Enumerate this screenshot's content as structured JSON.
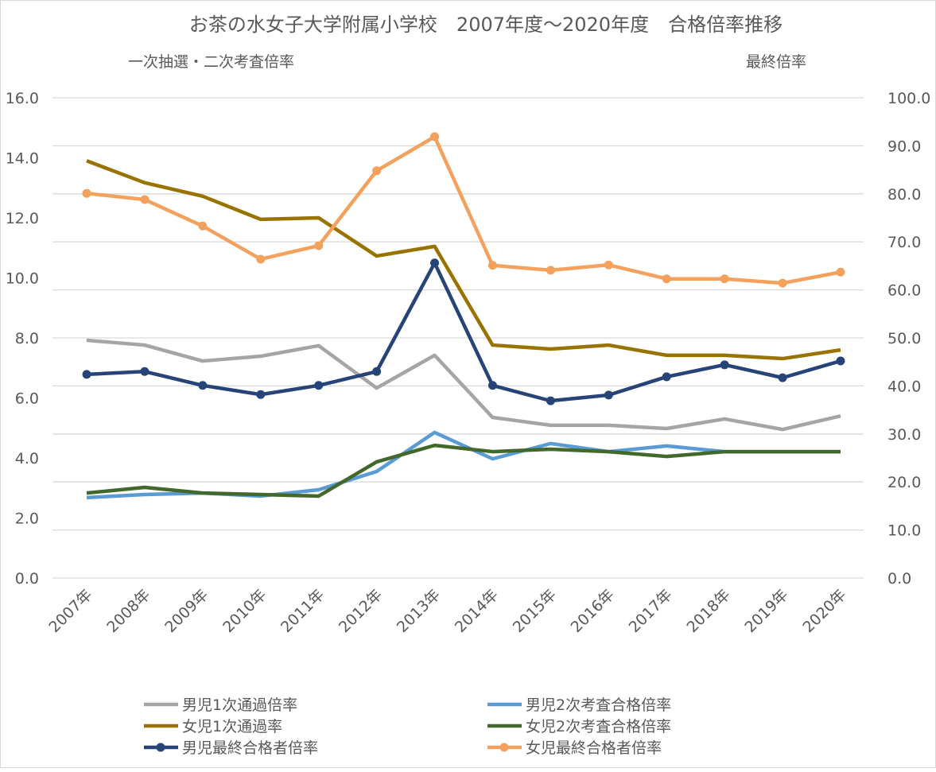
{
  "chart_data": {
    "type": "line",
    "title": "お茶の水女子大学附属小学校　2007年度～2020年度　合格倍率推移",
    "left_axis_label": "一次抽選・二次考査倍率",
    "right_axis_label": "最終倍率",
    "categories": [
      "2007年",
      "2008年",
      "2009年",
      "2010年",
      "2011年",
      "2012年",
      "2013年",
      "2014年",
      "2015年",
      "2016年",
      "2017年",
      "2018年",
      "2019年",
      "2020年"
    ],
    "y_left": {
      "min": 0,
      "max": 16,
      "step": 2,
      "ticks": [
        "0.0",
        "2.0",
        "4.0",
        "6.0",
        "8.0",
        "10.0",
        "12.0",
        "14.0",
        "16.0"
      ]
    },
    "y_right": {
      "min": 0,
      "max": 100,
      "step": 10,
      "ticks": [
        "0.0",
        "10.0",
        "20.0",
        "30.0",
        "40.0",
        "50.0",
        "60.0",
        "70.0",
        "80.0",
        "90.0",
        "100.0"
      ]
    },
    "grid": true,
    "legend_position": "bottom",
    "series": [
      {
        "name": "男児1次通過倍率",
        "axis": "left",
        "color": "#a5a5a5",
        "markers": false,
        "values": [
          7.92,
          7.76,
          7.23,
          7.39,
          7.74,
          6.33,
          7.42,
          5.35,
          5.09,
          5.09,
          4.98,
          5.3,
          4.95,
          5.4
        ]
      },
      {
        "name": "男児2次考査合格倍率",
        "axis": "left",
        "color": "#5b9bd5",
        "markers": false,
        "values": [
          2.68,
          2.78,
          2.83,
          2.73,
          2.94,
          3.55,
          4.85,
          3.97,
          4.48,
          4.21,
          4.4,
          4.21,
          4.21,
          4.21
        ]
      },
      {
        "name": "女児1次通過率",
        "axis": "left",
        "color": "#997300",
        "markers": false,
        "values": [
          13.9,
          13.17,
          12.72,
          11.95,
          12.0,
          10.73,
          11.05,
          7.76,
          7.63,
          7.76,
          7.42,
          7.42,
          7.31,
          7.6
        ]
      },
      {
        "name": "女児2次考査合格倍率",
        "axis": "left",
        "color": "#43682b",
        "markers": false,
        "values": [
          2.83,
          3.02,
          2.83,
          2.78,
          2.73,
          3.87,
          4.42,
          4.21,
          4.29,
          4.21,
          4.05,
          4.21,
          4.21,
          4.21
        ]
      },
      {
        "name": "男児最終合格者倍率",
        "axis": "right",
        "color": "#264478",
        "markers": true,
        "values": [
          42.4,
          43.0,
          40.1,
          38.2,
          40.1,
          43.0,
          65.6,
          40.1,
          36.9,
          38.1,
          41.9,
          44.4,
          41.7,
          45.2
        ]
      },
      {
        "name": "女児最終合格者倍率",
        "axis": "right",
        "color": "#f4a15d",
        "markers": true,
        "values": [
          80.1,
          78.8,
          73.3,
          66.4,
          69.2,
          84.8,
          91.9,
          65.1,
          64.1,
          65.2,
          62.3,
          62.3,
          61.4,
          63.7
        ]
      }
    ]
  }
}
